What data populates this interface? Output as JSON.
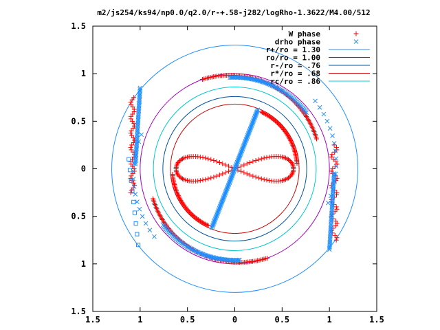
{
  "chart_data": {
    "type": "scatter",
    "title": "m2/js254/ks94/np0.0/q2.0/r-+.58-j282/logRho-1.3622/M4.00/512",
    "xlim": [
      -1.5,
      1.5
    ],
    "ylim": [
      -1.5,
      1.5
    ],
    "x_ticks": [
      -1.5,
      -1,
      -0.5,
      0,
      0.5,
      1,
      1.5
    ],
    "y_ticks": [
      -1.5,
      -1,
      -0.5,
      0,
      0.5,
      1,
      1.5
    ],
    "x_tick_labels": [
      "1.5",
      "1",
      "0.5",
      "0",
      "0.5",
      "1",
      "1.5"
    ],
    "y_tick_labels": [
      "1.5",
      "1",
      "0.5",
      "0",
      "0.5",
      "1",
      "1.5"
    ],
    "grid": false,
    "legend_position": "top-right",
    "series": [
      {
        "name": "W phase",
        "marker": "plus",
        "color": "#ff0000"
      },
      {
        "name": "drho phase",
        "marker": "cross",
        "color": "#1f8fff"
      }
    ],
    "circles": [
      {
        "name": "r+/ro = 1.30",
        "radius": 1.3,
        "color": "#1f8fff"
      },
      {
        "name": "ro/ro = 1.00",
        "radius": 1.0,
        "color": "#a000c0"
      },
      {
        "name": "r-/ro = .76",
        "radius": 0.76,
        "color": "#0055a0"
      },
      {
        "name": "r*/ro = .68",
        "radius": 0.68,
        "color": "#cc0000"
      },
      {
        "name": "rc/ro = .86",
        "radius": 0.86,
        "color": "#00c8d0"
      }
    ]
  }
}
